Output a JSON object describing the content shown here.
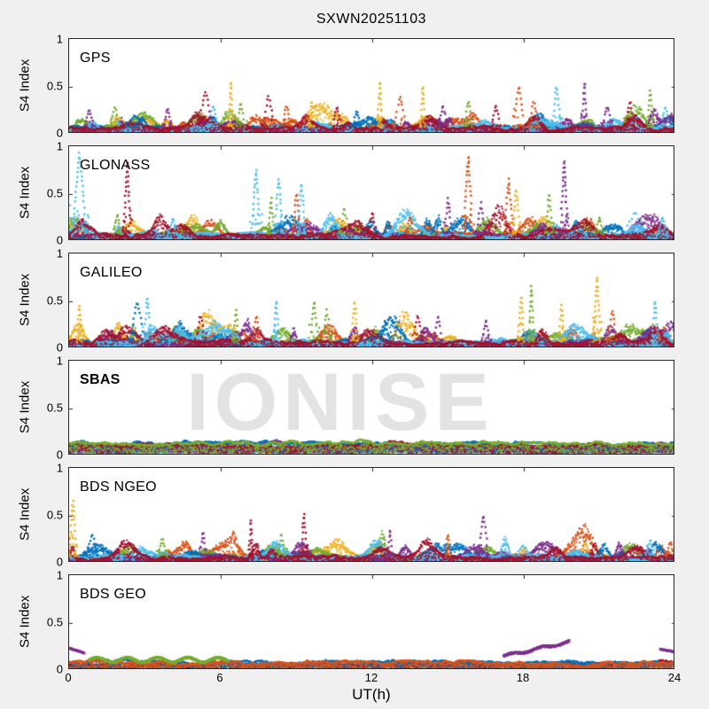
{
  "figure": {
    "title": "SXWN20251103",
    "background": "#f0f0f0",
    "watermark": {
      "text": "IONISE",
      "color": "#e3e3e3"
    }
  },
  "chart_data": {
    "type": "scatter",
    "title": "SXWN20251103",
    "xlabel": "UT(h)",
    "ylabel": "S4 Index",
    "xlim": [
      0,
      24
    ],
    "xticks": [
      0,
      6,
      12,
      18,
      24
    ],
    "ylim": [
      0,
      1
    ],
    "yticks": [
      0,
      0.5,
      1
    ],
    "ytick_labels": [
      "0",
      "0.5",
      "1"
    ],
    "grid": false,
    "legend": "none",
    "palette": [
      "#0072BD",
      "#D95319",
      "#EDB120",
      "#7E2F8E",
      "#77AC30",
      "#4DBEEE",
      "#A2142F"
    ],
    "panels": [
      {
        "label": "GPS",
        "seed": 11,
        "amp": 0.1,
        "baseline": [
          {
            "c": 2,
            "l": 0.06
          },
          {
            "c": 1,
            "l": 0.065
          },
          {
            "c": 4,
            "l": 0.055
          },
          {
            "c": 0,
            "l": 0.06
          },
          {
            "c": 3,
            "l": 0.05
          },
          {
            "c": 5,
            "l": 0.055
          },
          {
            "c": 6,
            "l": 0.06
          }
        ],
        "spikes": [
          [
            0.8,
            0.25,
            3
          ],
          [
            1.8,
            0.3,
            4
          ],
          [
            2.6,
            0.2,
            0,
            0.6
          ],
          [
            3.9,
            0.28,
            3
          ],
          [
            5.4,
            0.45,
            6,
            0.5
          ],
          [
            5.7,
            0.3,
            5
          ],
          [
            6.4,
            0.55,
            2,
            0.15
          ],
          [
            6.8,
            0.33,
            4
          ],
          [
            7.9,
            0.4,
            6,
            0.4
          ],
          [
            8.6,
            0.3,
            1
          ],
          [
            9.6,
            0.35,
            2,
            0.15
          ],
          [
            10.6,
            0.28,
            6
          ],
          [
            11.4,
            0.25,
            0
          ],
          [
            12.3,
            0.55,
            2,
            0.15
          ],
          [
            13.1,
            0.4,
            1,
            0.4
          ],
          [
            14.0,
            0.5,
            2,
            0.15
          ],
          [
            14.8,
            0.3,
            3
          ],
          [
            15.8,
            0.35,
            4
          ],
          [
            16.9,
            0.3,
            6
          ],
          [
            17.8,
            0.5,
            1,
            0.4
          ],
          [
            18.4,
            0.35,
            1
          ],
          [
            19.3,
            0.5,
            5,
            0.3
          ],
          [
            20.4,
            0.55,
            3,
            0.2
          ],
          [
            21.3,
            0.3,
            3
          ],
          [
            22.2,
            0.35,
            6
          ],
          [
            23.0,
            0.45,
            4,
            0.2
          ],
          [
            23.6,
            0.28,
            5
          ]
        ]
      },
      {
        "label": "GLONASS",
        "seed": 22,
        "amp": 0.13,
        "baseline": [
          {
            "c": 2,
            "l": 0.06
          },
          {
            "c": 1,
            "l": 0.065
          },
          {
            "c": 4,
            "l": 0.055
          },
          {
            "c": 0,
            "l": 0.06
          },
          {
            "c": 3,
            "l": 0.05
          },
          {
            "c": 5,
            "l": 0.065
          },
          {
            "c": 6,
            "l": 0.06
          }
        ],
        "spikes": [
          [
            0.4,
            0.92,
            5,
            0.5
          ],
          [
            1.9,
            0.28,
            4
          ],
          [
            2.3,
            0.85,
            6,
            0.25
          ],
          [
            4.1,
            0.25,
            5
          ],
          [
            7.4,
            0.75,
            5,
            0.3
          ],
          [
            8.0,
            0.45,
            4,
            0.2
          ],
          [
            8.3,
            0.65,
            5,
            0.3
          ],
          [
            9.0,
            0.5,
            1,
            0.25
          ],
          [
            9.2,
            0.6,
            5,
            0.25
          ],
          [
            10.9,
            0.35,
            4
          ],
          [
            12.0,
            0.3,
            6
          ],
          [
            13.5,
            0.25,
            1
          ],
          [
            15.0,
            0.45,
            3,
            0.25
          ],
          [
            15.8,
            0.9,
            1,
            0.3
          ],
          [
            16.3,
            0.4,
            3
          ],
          [
            17.4,
            0.65,
            1,
            0.3
          ],
          [
            17.7,
            0.55,
            2,
            0.25
          ],
          [
            19.0,
            0.5,
            4,
            0.25
          ],
          [
            19.6,
            0.85,
            3,
            0.25
          ],
          [
            21.0,
            0.25,
            4
          ],
          [
            22.4,
            0.3,
            5,
            0.8
          ],
          [
            23.5,
            0.25,
            5
          ]
        ]
      },
      {
        "label": "GALILEO",
        "seed": 33,
        "amp": 0.12,
        "baseline": [
          {
            "c": 2,
            "l": 0.065
          },
          {
            "c": 1,
            "l": 0.06
          },
          {
            "c": 4,
            "l": 0.055
          },
          {
            "c": 0,
            "l": 0.06
          },
          {
            "c": 3,
            "l": 0.05
          },
          {
            "c": 5,
            "l": 0.055
          },
          {
            "c": 6,
            "l": 0.065
          }
        ],
        "spikes": [
          [
            0.4,
            0.45,
            2,
            0.2
          ],
          [
            2.7,
            0.5,
            0,
            0.5
          ],
          [
            3.1,
            0.55,
            5,
            0.25
          ],
          [
            5.2,
            0.35,
            6
          ],
          [
            6.6,
            0.4,
            4,
            0.2
          ],
          [
            7.4,
            0.35,
            1
          ],
          [
            8.2,
            0.5,
            5,
            0.2
          ],
          [
            9.7,
            0.5,
            4,
            0.3
          ],
          [
            10.2,
            0.4,
            4
          ],
          [
            11.3,
            0.5,
            2,
            0.25
          ],
          [
            12.5,
            0.3,
            0
          ],
          [
            13.8,
            0.35,
            6
          ],
          [
            14.6,
            0.35,
            3
          ],
          [
            16.5,
            0.3,
            3
          ],
          [
            17.9,
            0.55,
            2,
            0.2
          ],
          [
            18.3,
            0.65,
            4,
            0.2
          ],
          [
            19.5,
            0.45,
            2,
            0.2
          ],
          [
            20.9,
            0.75,
            2,
            0.25
          ],
          [
            21.5,
            0.4,
            1
          ],
          [
            23.2,
            0.5,
            5,
            0.2
          ]
        ]
      },
      {
        "label": "SBAS",
        "seed": 44,
        "amp": 0.015,
        "bold": true,
        "watermark": true,
        "baseline": [
          {
            "c": 2,
            "l": 0.085,
            "amp": 0.012
          },
          {
            "c": 1,
            "l": 0.09,
            "amp": 0.012
          },
          {
            "c": 5,
            "l": 0.07,
            "amp": 0.012
          },
          {
            "c": 3,
            "l": 0.105,
            "amp": 0.015
          },
          {
            "c": 0,
            "l": 0.12,
            "amp": 0.018
          },
          {
            "c": 6,
            "l": 0.105,
            "amp": 0.015
          },
          {
            "c": 4,
            "l": 0.13,
            "amp": 0.018
          }
        ],
        "spikes": []
      },
      {
        "label": "BDS NGEO",
        "seed": 55,
        "amp": 0.1,
        "baseline": [
          {
            "c": 2,
            "l": 0.055
          },
          {
            "c": 1,
            "l": 0.06
          },
          {
            "c": 4,
            "l": 0.05
          },
          {
            "c": 0,
            "l": 0.06
          },
          {
            "c": 3,
            "l": 0.05
          },
          {
            "c": 5,
            "l": 0.06
          },
          {
            "c": 6,
            "l": 0.055
          }
        ],
        "spikes": [
          [
            0.15,
            0.65,
            2,
            0.25
          ],
          [
            0.9,
            0.3,
            0,
            0.4
          ],
          [
            3.7,
            0.25,
            4
          ],
          [
            5.3,
            0.32,
            3,
            0.2
          ],
          [
            7.2,
            0.45,
            6,
            0.15
          ],
          [
            8.4,
            0.3,
            4,
            0.3
          ],
          [
            9.3,
            0.52,
            6,
            0.2
          ],
          [
            12.7,
            0.35,
            3,
            0.15
          ],
          [
            15.0,
            0.3,
            1,
            0.15
          ],
          [
            16.4,
            0.5,
            3,
            0.35
          ],
          [
            18.0,
            0.18,
            5,
            0.5
          ],
          [
            20.8,
            0.2,
            6
          ],
          [
            23.0,
            0.25,
            5
          ],
          [
            23.8,
            0.22,
            1
          ]
        ]
      },
      {
        "label": "BDS GEO",
        "seed": 66,
        "amp": 0.01,
        "baseline": [
          {
            "c": 2,
            "l": 0.05,
            "amp": 0.008
          },
          {
            "c": 6,
            "l": 0.062,
            "amp": 0.006
          },
          {
            "c": 0,
            "l": 0.085,
            "amp": 0.008
          },
          {
            "c": 1,
            "l": 0.075,
            "amp": 0.008
          }
        ],
        "spikes": [],
        "segments": [
          {
            "t0": 0.0,
            "t1": 0.6,
            "y0": 0.23,
            "y1": 0.18,
            "c": 3
          },
          {
            "t0": 0.8,
            "t1": 6.3,
            "y0": 0.11,
            "y1": 0.11,
            "c": 4,
            "amp": 0.025,
            "wavy": true
          },
          {
            "t0": 17.2,
            "t1": 19.8,
            "y0": 0.15,
            "y1": 0.3,
            "c": 3,
            "amp": 0.012,
            "wavy": true
          },
          {
            "t0": 23.4,
            "t1": 24.0,
            "y0": 0.22,
            "y1": 0.19,
            "c": 3
          }
        ]
      }
    ]
  }
}
